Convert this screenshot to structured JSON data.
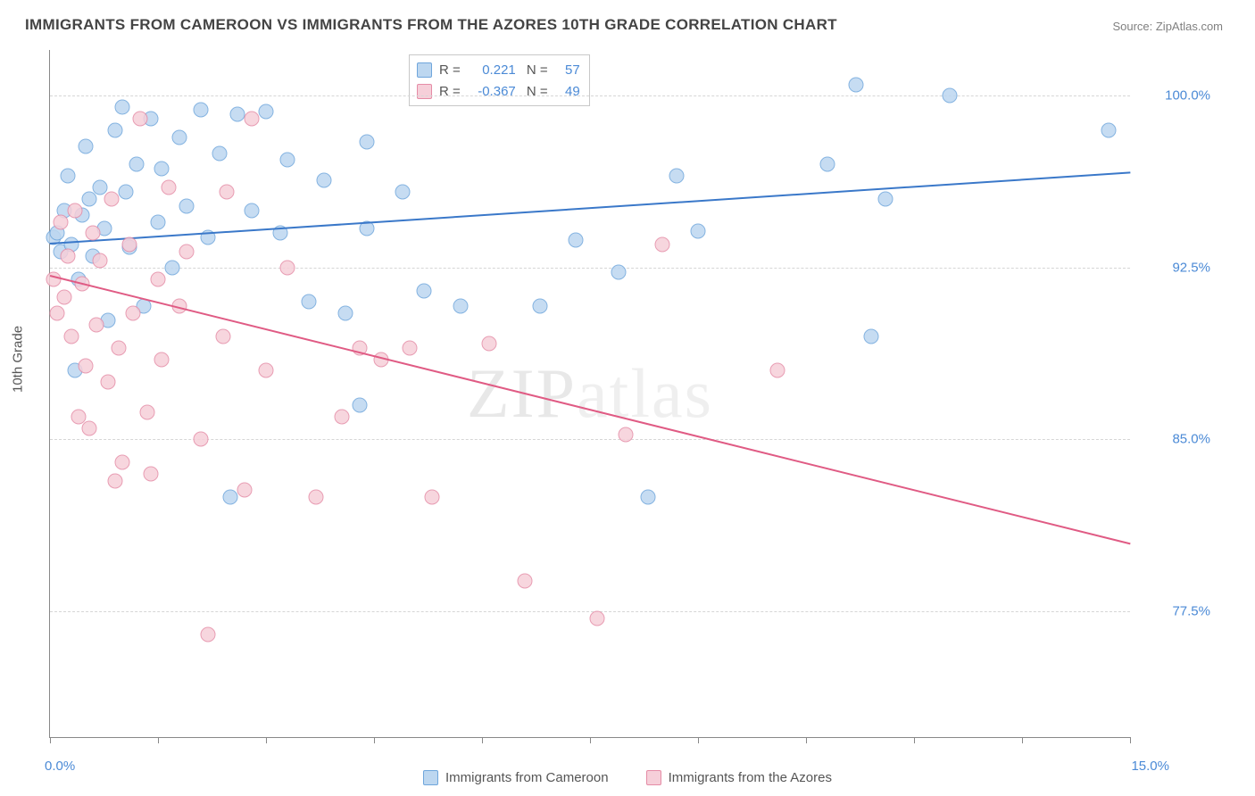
{
  "title": "IMMIGRANTS FROM CAMEROON VS IMMIGRANTS FROM THE AZORES 10TH GRADE CORRELATION CHART",
  "source": "Source: ZipAtlas.com",
  "ylabel": "10th Grade",
  "watermark_a": "ZIP",
  "watermark_b": "atlas",
  "chart": {
    "type": "scatter",
    "xlim": [
      0.0,
      15.0
    ],
    "ylim": [
      72.0,
      102.0
    ],
    "x_ticks": [
      0.0,
      1.5,
      3.0,
      4.5,
      6.0,
      7.5,
      9.0,
      10.5,
      12.0,
      13.5,
      15.0
    ],
    "y_grid": [
      77.5,
      85.0,
      92.5,
      100.0
    ],
    "y_tick_labels": [
      "77.5%",
      "85.0%",
      "92.5%",
      "100.0%"
    ],
    "x_corner_low": "0.0%",
    "x_corner_high": "15.0%",
    "background_color": "#ffffff",
    "grid_color": "#d6d6d6",
    "axis_color": "#888888",
    "marker_radius": 8.5,
    "series": [
      {
        "name": "Immigrants from Cameroon",
        "color_fill": "#bdd7f0",
        "color_stroke": "#6fa6dc",
        "trend_color": "#3a78c9",
        "R": "0.221",
        "N": "57",
        "trend": {
          "x0": 0.0,
          "y0": 93.6,
          "x1": 15.0,
          "y1": 96.7
        },
        "points": [
          [
            0.05,
            93.8
          ],
          [
            0.1,
            94.0
          ],
          [
            0.15,
            93.2
          ],
          [
            0.2,
            95.0
          ],
          [
            0.25,
            96.5
          ],
          [
            0.3,
            93.5
          ],
          [
            0.4,
            92.0
          ],
          [
            0.45,
            94.8
          ],
          [
            0.5,
            97.8
          ],
          [
            0.55,
            95.5
          ],
          [
            0.6,
            93.0
          ],
          [
            0.7,
            96.0
          ],
          [
            0.75,
            94.2
          ],
          [
            0.8,
            90.2
          ],
          [
            0.9,
            98.5
          ],
          [
            1.0,
            99.5
          ],
          [
            1.05,
            95.8
          ],
          [
            1.1,
            93.4
          ],
          [
            1.2,
            97.0
          ],
          [
            1.3,
            90.8
          ],
          [
            1.4,
            99.0
          ],
          [
            1.5,
            94.5
          ],
          [
            1.55,
            96.8
          ],
          [
            1.7,
            92.5
          ],
          [
            1.8,
            98.2
          ],
          [
            1.9,
            95.2
          ],
          [
            2.1,
            99.4
          ],
          [
            2.2,
            93.8
          ],
          [
            2.35,
            97.5
          ],
          [
            2.5,
            82.5
          ],
          [
            2.6,
            99.2
          ],
          [
            2.8,
            95.0
          ],
          [
            3.0,
            99.3
          ],
          [
            3.2,
            94.0
          ],
          [
            3.3,
            97.2
          ],
          [
            3.6,
            91.0
          ],
          [
            3.8,
            96.3
          ],
          [
            4.1,
            90.5
          ],
          [
            4.3,
            86.5
          ],
          [
            4.4,
            98.0
          ],
          [
            4.4,
            94.2
          ],
          [
            4.9,
            95.8
          ],
          [
            5.2,
            91.5
          ],
          [
            5.7,
            90.8
          ],
          [
            6.8,
            90.8
          ],
          [
            7.3,
            93.7
          ],
          [
            7.9,
            92.3
          ],
          [
            8.3,
            82.5
          ],
          [
            8.7,
            96.5
          ],
          [
            9.0,
            94.1
          ],
          [
            10.8,
            97.0
          ],
          [
            11.2,
            100.5
          ],
          [
            11.4,
            89.5
          ],
          [
            11.6,
            95.5
          ],
          [
            12.5,
            100.0
          ],
          [
            14.7,
            98.5
          ],
          [
            0.35,
            88.0
          ]
        ]
      },
      {
        "name": "Immigrants from the Azores",
        "color_fill": "#f6cfd9",
        "color_stroke": "#e58ca6",
        "trend_color": "#e05b84",
        "R": "-0.367",
        "N": "49",
        "trend": {
          "x0": 0.0,
          "y0": 92.2,
          "x1": 15.0,
          "y1": 80.5
        },
        "points": [
          [
            0.05,
            92.0
          ],
          [
            0.1,
            90.5
          ],
          [
            0.15,
            94.5
          ],
          [
            0.2,
            91.2
          ],
          [
            0.25,
            93.0
          ],
          [
            0.3,
            89.5
          ],
          [
            0.35,
            95.0
          ],
          [
            0.4,
            86.0
          ],
          [
            0.45,
            91.8
          ],
          [
            0.5,
            88.2
          ],
          [
            0.55,
            85.5
          ],
          [
            0.6,
            94.0
          ],
          [
            0.65,
            90.0
          ],
          [
            0.7,
            92.8
          ],
          [
            0.8,
            87.5
          ],
          [
            0.85,
            95.5
          ],
          [
            0.95,
            89.0
          ],
          [
            1.0,
            84.0
          ],
          [
            1.1,
            93.5
          ],
          [
            1.15,
            90.5
          ],
          [
            1.25,
            99.0
          ],
          [
            1.35,
            86.2
          ],
          [
            1.5,
            92.0
          ],
          [
            1.55,
            88.5
          ],
          [
            1.65,
            96.0
          ],
          [
            1.8,
            90.8
          ],
          [
            1.9,
            93.2
          ],
          [
            2.1,
            85.0
          ],
          [
            2.2,
            76.5
          ],
          [
            2.4,
            89.5
          ],
          [
            2.45,
            95.8
          ],
          [
            2.7,
            82.8
          ],
          [
            2.8,
            99.0
          ],
          [
            3.0,
            88.0
          ],
          [
            3.3,
            92.5
          ],
          [
            3.7,
            82.5
          ],
          [
            4.05,
            86.0
          ],
          [
            4.3,
            89.0
          ],
          [
            4.6,
            88.5
          ],
          [
            5.0,
            89.0
          ],
          [
            5.3,
            82.5
          ],
          [
            6.1,
            89.2
          ],
          [
            6.6,
            78.8
          ],
          [
            7.6,
            77.2
          ],
          [
            8.0,
            85.2
          ],
          [
            8.5,
            93.5
          ],
          [
            10.1,
            88.0
          ],
          [
            1.4,
            83.5
          ],
          [
            0.9,
            83.2
          ]
        ]
      }
    ]
  },
  "legend_bottom": [
    "Immigrants from Cameroon",
    "Immigrants from the Azores"
  ]
}
